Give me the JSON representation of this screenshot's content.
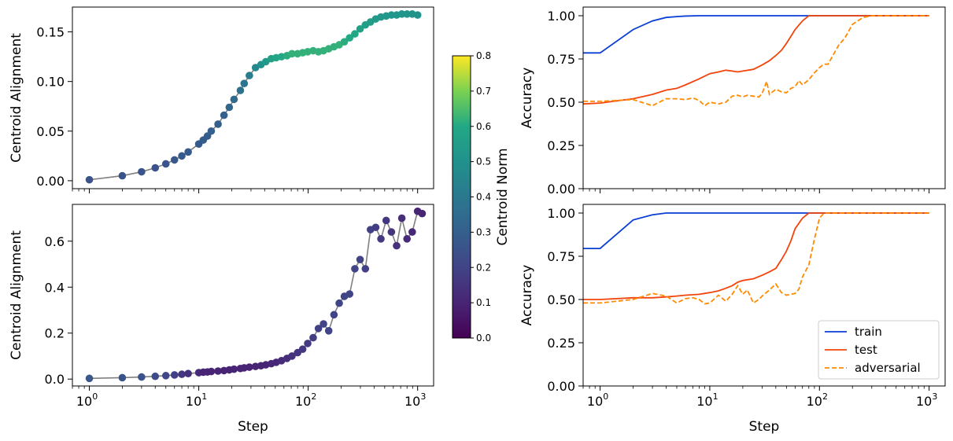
{
  "chart_data": [
    {
      "panel": "top-left",
      "type": "scatter",
      "xscale": "log",
      "xlim": [
        0.7,
        1400
      ],
      "ylim": [
        -0.008,
        0.175
      ],
      "xlabel": "",
      "ylabel": "Centroid Alignment",
      "yticks": [
        0.0,
        0.05,
        0.1,
        0.15
      ],
      "ytick_labels": [
        "0.00",
        "0.05",
        "0.10",
        "0.15"
      ],
      "line_color": "#808080",
      "colormap": "viridis",
      "color_range": [
        0.0,
        0.8
      ],
      "points": [
        {
          "x": 1,
          "y": 0.001,
          "c": 0.26
        },
        {
          "x": 2,
          "y": 0.005,
          "c": 0.26
        },
        {
          "x": 3,
          "y": 0.009,
          "c": 0.26
        },
        {
          "x": 4,
          "y": 0.013,
          "c": 0.26
        },
        {
          "x": 5,
          "y": 0.017,
          "c": 0.26
        },
        {
          "x": 6,
          "y": 0.021,
          "c": 0.27
        },
        {
          "x": 7,
          "y": 0.025,
          "c": 0.28
        },
        {
          "x": 8,
          "y": 0.029,
          "c": 0.28
        },
        {
          "x": 10,
          "y": 0.037,
          "c": 0.28
        },
        {
          "x": 11,
          "y": 0.041,
          "c": 0.29
        },
        {
          "x": 12,
          "y": 0.045,
          "c": 0.29
        },
        {
          "x": 13,
          "y": 0.05,
          "c": 0.3
        },
        {
          "x": 15,
          "y": 0.057,
          "c": 0.3
        },
        {
          "x": 17,
          "y": 0.066,
          "c": 0.31
        },
        {
          "x": 19,
          "y": 0.074,
          "c": 0.33
        },
        {
          "x": 21,
          "y": 0.082,
          "c": 0.35
        },
        {
          "x": 24,
          "y": 0.091,
          "c": 0.37
        },
        {
          "x": 26,
          "y": 0.098,
          "c": 0.39
        },
        {
          "x": 29,
          "y": 0.106,
          "c": 0.42
        },
        {
          "x": 33,
          "y": 0.114,
          "c": 0.46
        },
        {
          "x": 37,
          "y": 0.117,
          "c": 0.5
        },
        {
          "x": 41,
          "y": 0.12,
          "c": 0.54
        },
        {
          "x": 46,
          "y": 0.123,
          "c": 0.57
        },
        {
          "x": 51,
          "y": 0.124,
          "c": 0.59
        },
        {
          "x": 57,
          "y": 0.125,
          "c": 0.6
        },
        {
          "x": 64,
          "y": 0.126,
          "c": 0.61
        },
        {
          "x": 71,
          "y": 0.128,
          "c": 0.62
        },
        {
          "x": 80,
          "y": 0.128,
          "c": 0.62
        },
        {
          "x": 89,
          "y": 0.129,
          "c": 0.62
        },
        {
          "x": 99,
          "y": 0.13,
          "c": 0.62
        },
        {
          "x": 111,
          "y": 0.131,
          "c": 0.62
        },
        {
          "x": 124,
          "y": 0.13,
          "c": 0.62
        },
        {
          "x": 138,
          "y": 0.131,
          "c": 0.62
        },
        {
          "x": 154,
          "y": 0.133,
          "c": 0.62
        },
        {
          "x": 172,
          "y": 0.135,
          "c": 0.62
        },
        {
          "x": 192,
          "y": 0.137,
          "c": 0.62
        },
        {
          "x": 214,
          "y": 0.14,
          "c": 0.61
        },
        {
          "x": 239,
          "y": 0.144,
          "c": 0.6
        },
        {
          "x": 267,
          "y": 0.148,
          "c": 0.59
        },
        {
          "x": 298,
          "y": 0.153,
          "c": 0.57
        },
        {
          "x": 333,
          "y": 0.157,
          "c": 0.56
        },
        {
          "x": 371,
          "y": 0.16,
          "c": 0.55
        },
        {
          "x": 414,
          "y": 0.163,
          "c": 0.54
        },
        {
          "x": 462,
          "y": 0.165,
          "c": 0.53
        },
        {
          "x": 516,
          "y": 0.166,
          "c": 0.53
        },
        {
          "x": 576,
          "y": 0.167,
          "c": 0.52
        },
        {
          "x": 643,
          "y": 0.167,
          "c": 0.52
        },
        {
          "x": 717,
          "y": 0.168,
          "c": 0.52
        },
        {
          "x": 800,
          "y": 0.168,
          "c": 0.52
        },
        {
          "x": 893,
          "y": 0.168,
          "c": 0.51
        },
        {
          "x": 1000,
          "y": 0.167,
          "c": 0.51
        }
      ]
    },
    {
      "panel": "bottom-left",
      "type": "scatter",
      "xscale": "log",
      "xlim": [
        0.7,
        1400
      ],
      "ylim": [
        -0.03,
        0.76
      ],
      "xlabel": "Step",
      "ylabel": "Centroid Alignment",
      "yticks": [
        0.0,
        0.2,
        0.4,
        0.6
      ],
      "ytick_labels": [
        "0.0",
        "0.2",
        "0.4",
        "0.6"
      ],
      "line_color": "#808080",
      "colormap": "viridis",
      "color_range": [
        0.0,
        0.8
      ],
      "points": [
        {
          "x": 1,
          "y": 0.003,
          "c": 0.27
        },
        {
          "x": 2,
          "y": 0.006,
          "c": 0.26
        },
        {
          "x": 3,
          "y": 0.009,
          "c": 0.25
        },
        {
          "x": 4,
          "y": 0.012,
          "c": 0.23
        },
        {
          "x": 5,
          "y": 0.015,
          "c": 0.21
        },
        {
          "x": 6,
          "y": 0.018,
          "c": 0.19
        },
        {
          "x": 7,
          "y": 0.021,
          "c": 0.16
        },
        {
          "x": 8,
          "y": 0.024,
          "c": 0.14
        },
        {
          "x": 10,
          "y": 0.028,
          "c": 0.12
        },
        {
          "x": 11,
          "y": 0.03,
          "c": 0.1
        },
        {
          "x": 12,
          "y": 0.031,
          "c": 0.1
        },
        {
          "x": 13,
          "y": 0.033,
          "c": 0.1
        },
        {
          "x": 15,
          "y": 0.035,
          "c": 0.1
        },
        {
          "x": 17,
          "y": 0.037,
          "c": 0.1
        },
        {
          "x": 19,
          "y": 0.04,
          "c": 0.1
        },
        {
          "x": 21,
          "y": 0.043,
          "c": 0.1
        },
        {
          "x": 24,
          "y": 0.046,
          "c": 0.1
        },
        {
          "x": 26,
          "y": 0.049,
          "c": 0.1
        },
        {
          "x": 29,
          "y": 0.052,
          "c": 0.1
        },
        {
          "x": 33,
          "y": 0.055,
          "c": 0.1
        },
        {
          "x": 37,
          "y": 0.058,
          "c": 0.1
        },
        {
          "x": 41,
          "y": 0.062,
          "c": 0.1
        },
        {
          "x": 46,
          "y": 0.067,
          "c": 0.11
        },
        {
          "x": 51,
          "y": 0.073,
          "c": 0.11
        },
        {
          "x": 57,
          "y": 0.08,
          "c": 0.12
        },
        {
          "x": 64,
          "y": 0.09,
          "c": 0.13
        },
        {
          "x": 71,
          "y": 0.1,
          "c": 0.14
        },
        {
          "x": 80,
          "y": 0.115,
          "c": 0.15
        },
        {
          "x": 89,
          "y": 0.13,
          "c": 0.16
        },
        {
          "x": 99,
          "y": 0.155,
          "c": 0.17
        },
        {
          "x": 111,
          "y": 0.18,
          "c": 0.18
        },
        {
          "x": 124,
          "y": 0.22,
          "c": 0.19
        },
        {
          "x": 138,
          "y": 0.24,
          "c": 0.2
        },
        {
          "x": 154,
          "y": 0.21,
          "c": 0.2
        },
        {
          "x": 172,
          "y": 0.28,
          "c": 0.2
        },
        {
          "x": 192,
          "y": 0.33,
          "c": 0.2
        },
        {
          "x": 214,
          "y": 0.36,
          "c": 0.2
        },
        {
          "x": 239,
          "y": 0.37,
          "c": 0.2
        },
        {
          "x": 267,
          "y": 0.48,
          "c": 0.2
        },
        {
          "x": 298,
          "y": 0.52,
          "c": 0.2
        },
        {
          "x": 333,
          "y": 0.48,
          "c": 0.19
        },
        {
          "x": 371,
          "y": 0.65,
          "c": 0.19
        },
        {
          "x": 414,
          "y": 0.66,
          "c": 0.18
        },
        {
          "x": 462,
          "y": 0.61,
          "c": 0.17
        },
        {
          "x": 516,
          "y": 0.69,
          "c": 0.16
        },
        {
          "x": 576,
          "y": 0.64,
          "c": 0.15
        },
        {
          "x": 643,
          "y": 0.58,
          "c": 0.14
        },
        {
          "x": 717,
          "y": 0.7,
          "c": 0.13
        },
        {
          "x": 800,
          "y": 0.61,
          "c": 0.12
        },
        {
          "x": 893,
          "y": 0.64,
          "c": 0.11
        },
        {
          "x": 1000,
          "y": 0.73,
          "c": 0.1
        },
        {
          "x": 1100,
          "y": 0.72,
          "c": 0.1
        }
      ]
    },
    {
      "panel": "colorbar",
      "type": "colorbar",
      "colormap": "viridis",
      "label": "Centroid Norm",
      "range": [
        0.0,
        0.8
      ],
      "ticks": [
        0.0,
        0.1,
        0.2,
        0.3,
        0.4,
        0.5,
        0.6,
        0.7,
        0.8
      ],
      "tick_labels": [
        "0.0",
        "0.1",
        "0.2",
        "0.3",
        "0.4",
        "0.5",
        "0.6",
        "0.7",
        "0.8"
      ]
    },
    {
      "panel": "top-right",
      "type": "line",
      "xscale": "log",
      "xlim": [
        0.7,
        1400
      ],
      "ylim": [
        0.0,
        1.05
      ],
      "xlabel": "",
      "ylabel": "Accuracy",
      "yticks": [
        0.0,
        0.25,
        0.5,
        0.75,
        1.0
      ],
      "ytick_labels": [
        "0.00",
        "0.25",
        "0.50",
        "0.75",
        "1.00"
      ],
      "series": [
        {
          "label": "train",
          "color": "#0a3fd6",
          "dash": "solid",
          "x": [
            0.7,
            1,
            2,
            3,
            4,
            5,
            6,
            8,
            10,
            1000
          ],
          "y": [
            0.785,
            0.785,
            0.92,
            0.97,
            0.99,
            0.995,
            0.998,
            1.0,
            1.0,
            1.0
          ]
        },
        {
          "label": "test",
          "color": "#f2440c",
          "dash": "solid",
          "x": [
            0.7,
            1,
            2,
            3,
            4,
            5,
            6,
            8,
            10,
            12,
            14,
            16,
            18,
            20,
            25,
            30,
            35,
            40,
            45,
            50,
            60,
            70,
            80,
            90,
            100,
            1000
          ],
          "y": [
            0.49,
            0.495,
            0.52,
            0.545,
            0.57,
            0.58,
            0.6,
            0.635,
            0.665,
            0.675,
            0.685,
            0.68,
            0.675,
            0.68,
            0.69,
            0.715,
            0.74,
            0.77,
            0.8,
            0.84,
            0.92,
            0.97,
            1.0,
            1.0,
            1.0,
            1.0
          ]
        },
        {
          "label": "adversarial",
          "color": "#ff8a00",
          "dash": "dashed",
          "x": [
            0.7,
            1,
            2,
            3,
            4,
            5,
            6,
            7,
            8,
            9,
            10,
            12,
            14,
            16,
            18,
            20,
            22,
            25,
            28,
            30,
            33,
            35,
            40,
            45,
            50,
            55,
            60,
            65,
            70,
            80,
            90,
            100,
            110,
            120,
            130,
            150,
            170,
            200,
            250,
            300,
            1000
          ],
          "y": [
            0.505,
            0.505,
            0.515,
            0.48,
            0.52,
            0.52,
            0.515,
            0.525,
            0.51,
            0.48,
            0.5,
            0.49,
            0.5,
            0.535,
            0.54,
            0.53,
            0.54,
            0.535,
            0.53,
            0.55,
            0.62,
            0.545,
            0.575,
            0.56,
            0.555,
            0.58,
            0.59,
            0.625,
            0.6,
            0.63,
            0.67,
            0.7,
            0.72,
            0.72,
            0.76,
            0.83,
            0.87,
            0.95,
            0.99,
            1.0,
            1.0
          ]
        }
      ]
    },
    {
      "panel": "bottom-right",
      "type": "line",
      "xscale": "log",
      "xlim": [
        0.7,
        1400
      ],
      "ylim": [
        0.0,
        1.05
      ],
      "xlabel": "Step",
      "ylabel": "Accuracy",
      "yticks": [
        0.0,
        0.25,
        0.5,
        0.75,
        1.0
      ],
      "ytick_labels": [
        "0.00",
        "0.25",
        "0.50",
        "0.75",
        "1.00"
      ],
      "legend": {
        "loc": "lower right",
        "entries": [
          "train",
          "test",
          "adversarial"
        ]
      },
      "series": [
        {
          "label": "train",
          "color": "#0a3fd6",
          "dash": "solid",
          "x": [
            0.7,
            1,
            2,
            3,
            4,
            1000
          ],
          "y": [
            0.795,
            0.795,
            0.96,
            0.99,
            1.0,
            1.0
          ]
        },
        {
          "label": "test",
          "color": "#f2440c",
          "dash": "solid",
          "x": [
            0.7,
            1,
            2,
            3,
            4,
            5,
            6,
            8,
            10,
            12,
            14,
            16,
            18,
            20,
            25,
            30,
            35,
            40,
            45,
            50,
            55,
            60,
            70,
            80,
            90,
            100,
            1000
          ],
          "y": [
            0.5,
            0.5,
            0.51,
            0.51,
            0.515,
            0.52,
            0.525,
            0.53,
            0.54,
            0.55,
            0.565,
            0.58,
            0.6,
            0.61,
            0.62,
            0.64,
            0.66,
            0.68,
            0.73,
            0.78,
            0.84,
            0.91,
            0.97,
            1.0,
            1.0,
            1.0,
            1.0
          ]
        },
        {
          "label": "adversarial",
          "color": "#ff8a00",
          "dash": "dashed",
          "x": [
            0.7,
            1,
            2,
            3,
            4,
            5,
            6,
            7,
            8,
            9,
            10,
            12,
            14,
            16,
            18,
            20,
            22,
            25,
            28,
            30,
            35,
            40,
            45,
            50,
            55,
            60,
            65,
            70,
            80,
            90,
            100,
            110,
            120,
            1000
          ],
          "y": [
            0.48,
            0.48,
            0.5,
            0.535,
            0.52,
            0.48,
            0.505,
            0.51,
            0.5,
            0.475,
            0.48,
            0.525,
            0.49,
            0.53,
            0.58,
            0.53,
            0.555,
            0.48,
            0.5,
            0.52,
            0.555,
            0.59,
            0.54,
            0.525,
            0.53,
            0.535,
            0.56,
            0.63,
            0.7,
            0.85,
            0.97,
            1.0,
            1.0,
            1.0
          ]
        }
      ]
    }
  ]
}
